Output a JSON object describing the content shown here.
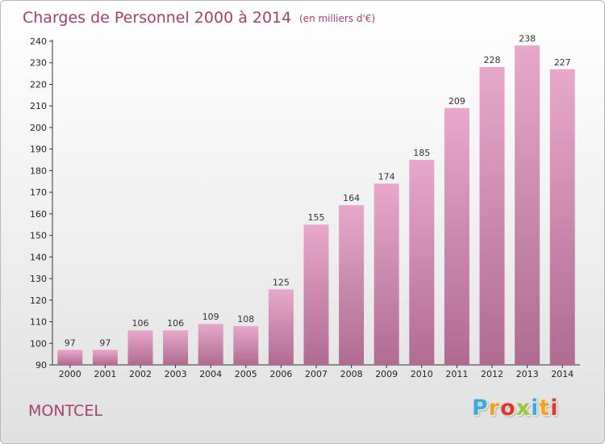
{
  "chart_data": {
    "type": "bar",
    "title": "Charges de Personnel 2000 à 2014",
    "subtitle": "(en milliers d'€)",
    "categories": [
      "2000",
      "2001",
      "2002",
      "2003",
      "2004",
      "2005",
      "2006",
      "2007",
      "2008",
      "2009",
      "2010",
      "2011",
      "2012",
      "2013",
      "2014"
    ],
    "values": [
      97,
      97,
      106,
      106,
      109,
      108,
      125,
      155,
      164,
      174,
      185,
      209,
      228,
      238,
      227
    ],
    "xlabel": "",
    "ylabel": "",
    "ylim": [
      90,
      240
    ],
    "yticks": [
      90,
      100,
      110,
      120,
      130,
      140,
      150,
      160,
      170,
      180,
      190,
      200,
      210,
      220,
      230,
      240
    ],
    "grid": false,
    "bar_color": "#d98fb8"
  },
  "footer": {
    "commune": "MONTCEL",
    "logo_letters": [
      "P",
      "r",
      "o",
      "x",
      "i",
      "t",
      "i"
    ],
    "logo_colors": [
      "#3fa9d8",
      "#f4a11d",
      "#e2352e",
      "#9bc53d",
      "#3fa9d8",
      "#f4a11d",
      "#e2352e"
    ]
  }
}
